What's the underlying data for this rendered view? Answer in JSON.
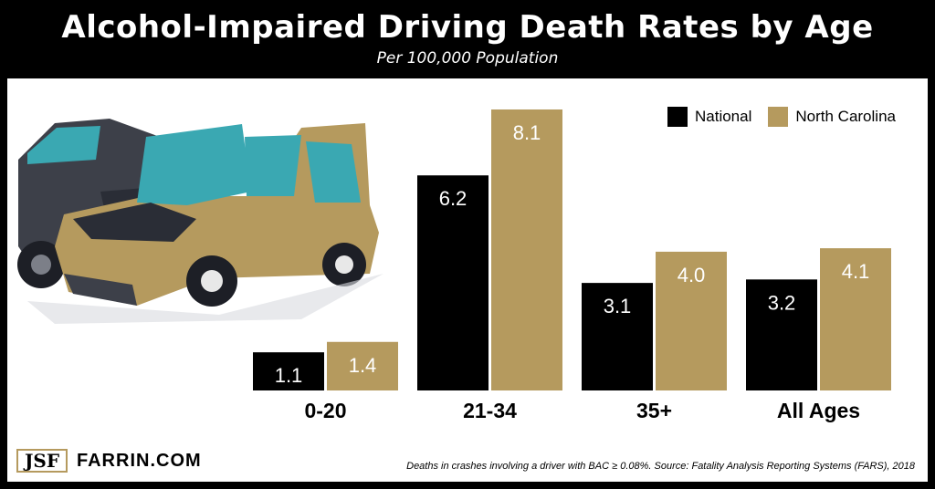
{
  "title": "Alcohol-Impaired Driving Death Rates by Age",
  "subtitle": "Per 100,000 Population",
  "legend": {
    "national": "National",
    "north_carolina": "North Carolina"
  },
  "colors": {
    "national": "#000000",
    "north_carolina": "#b59a5e",
    "label_light": "#ffffff"
  },
  "logo": {
    "mark": "JSF",
    "site": "FARRIN.COM"
  },
  "footnote": "Deaths in crashes involving a driver with BAC ≥ 0.08%. Source: Fatality Analysis Reporting Systems (FARS), 2018",
  "chart_data": {
    "type": "bar",
    "categories": [
      "0-20",
      "21-34",
      "35+",
      "All Ages"
    ],
    "series": [
      {
        "name": "National",
        "values": [
          1.1,
          6.2,
          3.1,
          3.2
        ],
        "labels": [
          "1.1",
          "6.2",
          "3.1",
          "3.2"
        ]
      },
      {
        "name": "North Carolina",
        "values": [
          1.4,
          8.1,
          4.0,
          4.1
        ],
        "labels": [
          "1.4",
          "8.1",
          "4.0",
          "4.1"
        ]
      }
    ],
    "ylim": [
      0,
      8.1
    ],
    "grid": false,
    "legend_position": "top-right"
  }
}
